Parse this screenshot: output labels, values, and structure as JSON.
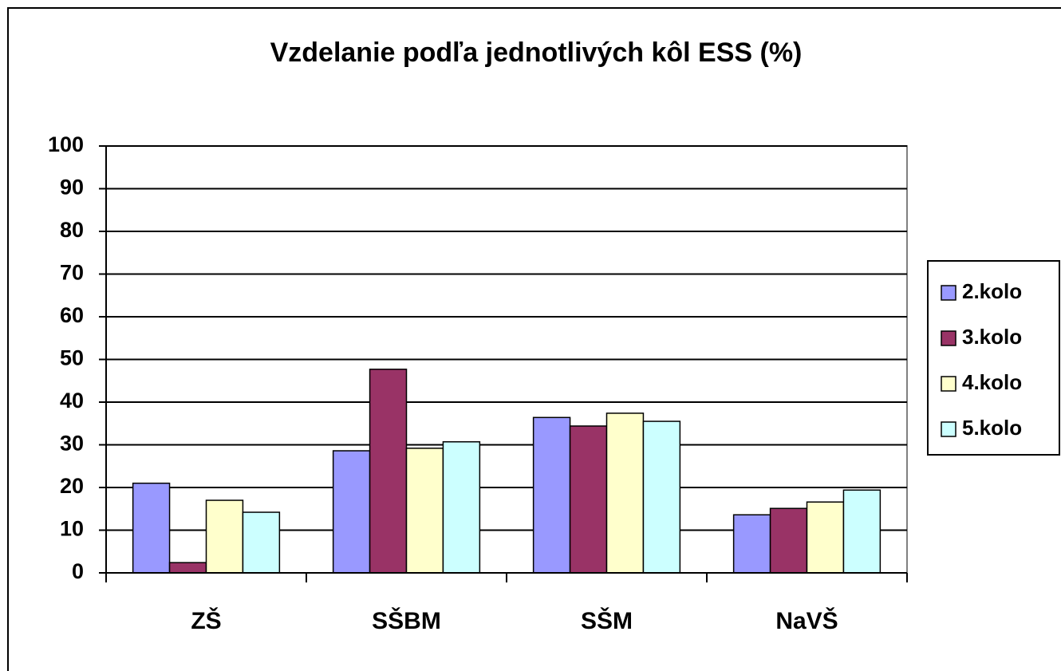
{
  "chart_data": {
    "type": "bar",
    "title": "Vzdelanie podľa jednotlivých kôl ESS (%)",
    "categories": [
      "ZŠ",
      "SŠBM",
      "SŠM",
      "NaVŠ"
    ],
    "series": [
      {
        "name": "2.kolo",
        "color": "#9999ff",
        "values": [
          21,
          28.6,
          36.4,
          13.6
        ]
      },
      {
        "name": "3.kolo",
        "color": "#993366",
        "values": [
          2.4,
          47.7,
          34.4,
          15.1
        ]
      },
      {
        "name": "4.kolo",
        "color": "#ffffcc",
        "values": [
          17,
          29.2,
          37.4,
          16.6
        ]
      },
      {
        "name": "5.kolo",
        "color": "#ccffff",
        "values": [
          14.2,
          30.7,
          35.5,
          19.4
        ]
      }
    ],
    "ylim": [
      0,
      100
    ],
    "yticks": [
      0,
      10,
      20,
      30,
      40,
      50,
      60,
      70,
      80,
      90,
      100
    ],
    "grid": true,
    "legend": "right"
  }
}
